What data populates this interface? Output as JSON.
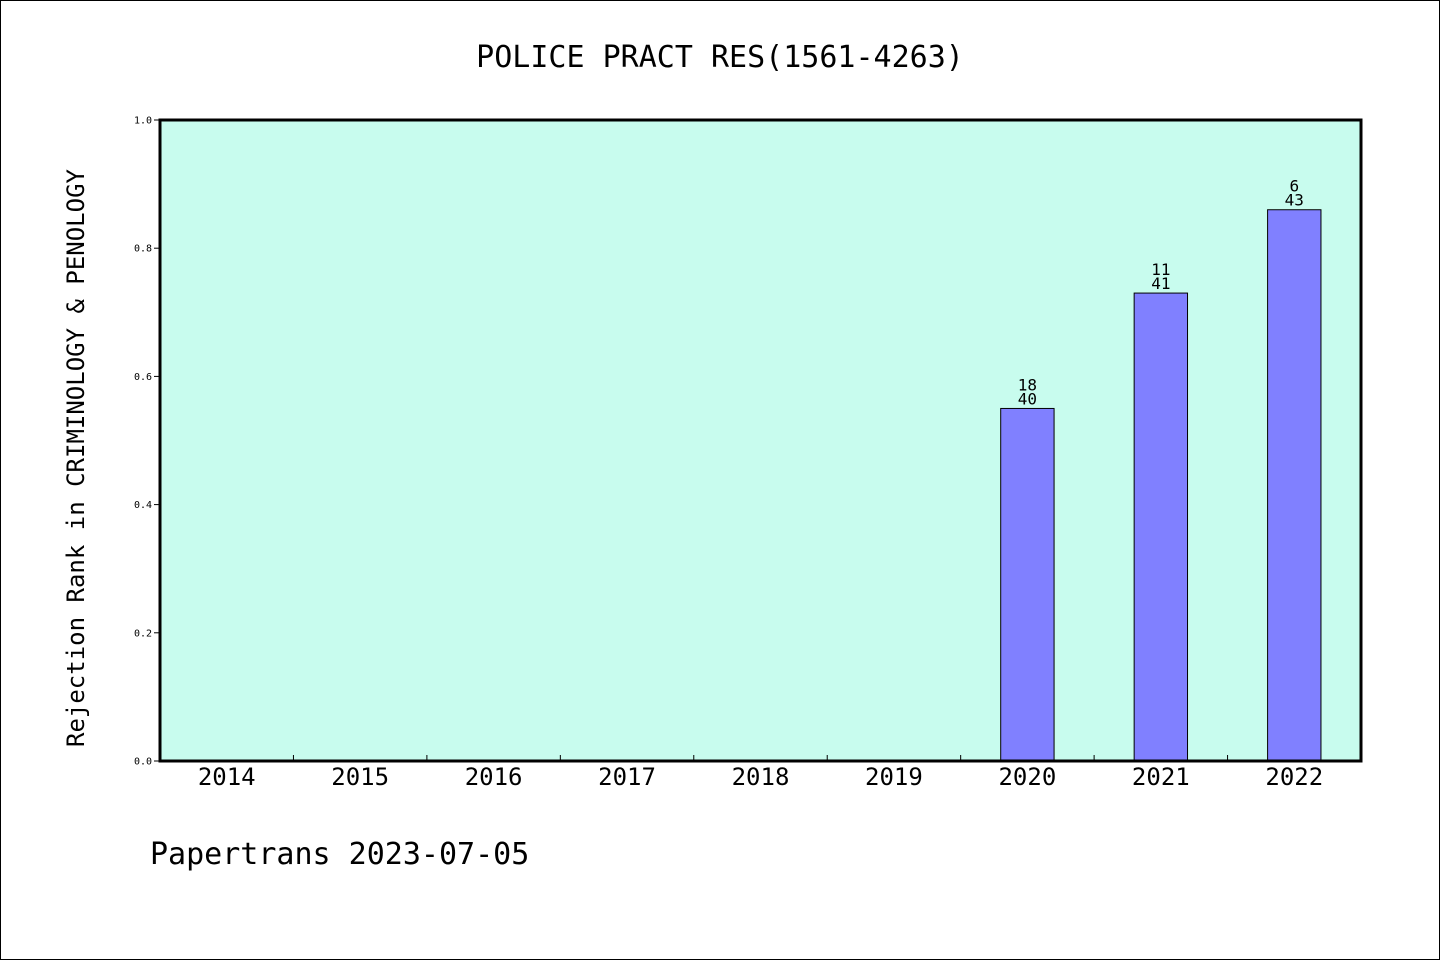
{
  "chart_data": {
    "type": "bar",
    "title": "POLICE PRACT RES(1561-4263)",
    "xlabel": "",
    "ylabel": "Rejection Rank in CRIMINOLOGY & PENOLOGY",
    "categories": [
      "2014",
      "2015",
      "2016",
      "2017",
      "2018",
      "2019",
      "2020",
      "2021",
      "2022"
    ],
    "values": [
      null,
      null,
      null,
      null,
      null,
      null,
      0.55,
      0.73,
      0.86
    ],
    "bar_labels": [
      null,
      null,
      null,
      null,
      null,
      null,
      {
        "top": "18",
        "bottom": "40"
      },
      {
        "top": "11",
        "bottom": "41"
      },
      {
        "top": "6",
        "bottom": "43"
      }
    ],
    "ylim": [
      0,
      1.0
    ],
    "yticks": [
      "0.0",
      "0.2",
      "0.4",
      "0.6",
      "0.8",
      "1.0"
    ],
    "grid": false,
    "colors": {
      "plot_background": "#c8fcee",
      "bar_fill": "#8080ff",
      "bar_stroke": "#000000"
    }
  },
  "footer": "Papertrans 2023-07-05"
}
